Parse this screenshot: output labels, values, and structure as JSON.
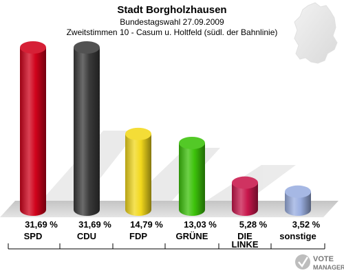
{
  "chart_data": {
    "type": "bar",
    "title": "Stadt Borgholzhausen",
    "subtitle": "Bundestagswahl 27.09.2009",
    "subtitle2": "Zweitstimmen 10 - Casum u. Holtfeld (südl. der Bahnlinie)",
    "categories": [
      "SPD",
      "CDU",
      "FDP",
      "GRÜNE",
      "DIE LINKE",
      "sonstige"
    ],
    "values": [
      31.69,
      31.69,
      14.79,
      13.03,
      5.28,
      3.52
    ],
    "value_labels": [
      "31,69 %",
      "31,69 %",
      "14,79 %",
      "13,03 %",
      "5,28 %",
      "3,52 %"
    ],
    "colors": [
      "#d0021b",
      "#3a3a3a",
      "#f2d81c",
      "#3cc20a",
      "#c8174c",
      "#9aaee0"
    ],
    "ylim": [
      0,
      31.69
    ],
    "grid": false,
    "legend": "none"
  },
  "logo": {
    "line1": "VOTE",
    "line2": "MANAGER"
  }
}
